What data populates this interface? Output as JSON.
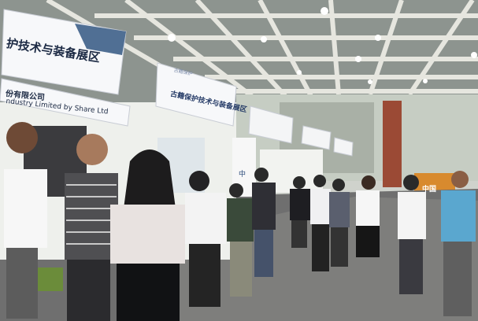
{
  "photo": {
    "banner_zone_title": "护技术与装备展区",
    "banner_company_line1": "份有限公司",
    "banner_company_line2": "ndustry Limited by Share Ltd",
    "banner_booth2_title": "古籍保护技术与装备展区",
    "banner_booth2_sub": "古籍保护",
    "booth_side_text": "中",
    "far_sign_text": "中国"
  }
}
